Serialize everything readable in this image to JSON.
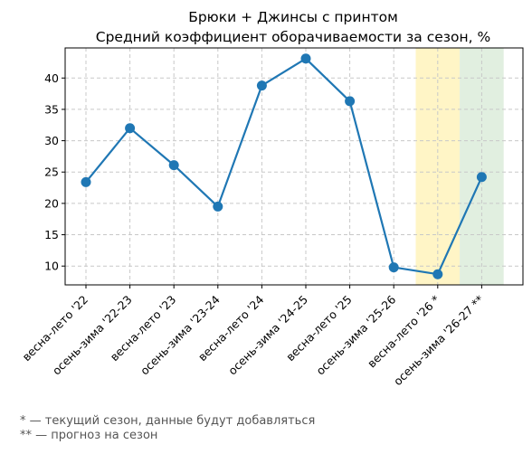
{
  "chart_data": {
    "type": "line",
    "title": "Брюки + Джинсы с принтом",
    "subtitle": "Средний коэффициент оборачиваемости за сезон, %",
    "xlabel": "",
    "ylabel": "",
    "categories": [
      "весна-лето '22",
      "осень-зима '22-23",
      "весна-лето '23",
      "осень-зима '23-24",
      "весна-лето '24",
      "осень-зима '24-25",
      "весна-лето '25",
      "осень-зима '25-26",
      "весна-лето '26 *",
      "осень-зима '26-27 **"
    ],
    "series": [
      {
        "values": [
          23.4,
          32.0,
          26.1,
          19.5,
          38.8,
          43.1,
          36.3,
          9.8,
          8.7,
          24.2
        ],
        "color": "#1f77b4"
      }
    ],
    "ylim": [
      7.0,
      44.8
    ],
    "yticks": [
      10,
      15,
      20,
      25,
      30,
      35,
      40
    ],
    "grid": true,
    "highlight_bands": [
      {
        "category_index": 8,
        "color": "#fff2b3"
      },
      {
        "category_index": 9,
        "color": "#d7ead5"
      }
    ],
    "notes": [
      "* — текущий сезон, данные будут добавляться",
      "** — прогноз на сезон"
    ]
  }
}
